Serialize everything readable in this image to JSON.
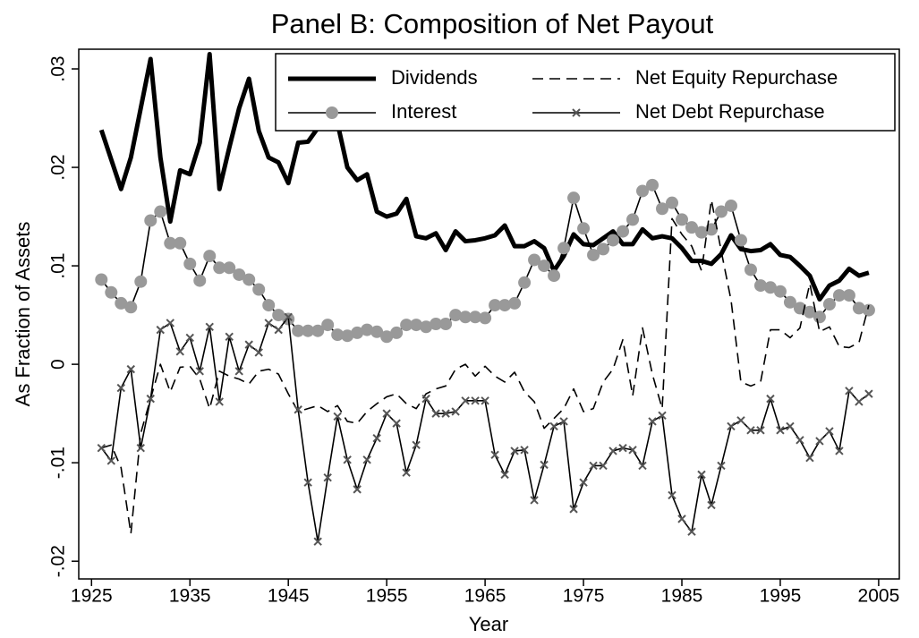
{
  "chart_data": {
    "type": "line",
    "title": "Panel B: Composition of Net Payout",
    "x_label": "Year",
    "y_label": "As Fraction of Assets",
    "xlim": [
      1923.7,
      2007.1
    ],
    "ylim": [
      -0.0218,
      0.032
    ],
    "xticks": [
      1925,
      1935,
      1945,
      1955,
      1965,
      1975,
      1985,
      1995,
      2005
    ],
    "yticks": [
      {
        "value": -0.02,
        "label": "-.02"
      },
      {
        "value": -0.01,
        "label": "-.01"
      },
      0,
      {
        "value": 0.01,
        "label": ".01"
      },
      {
        "value": 0.02,
        "label": ".02"
      },
      {
        "value": 0.03,
        "label": ".03"
      }
    ],
    "grid": false,
    "legend_position": "top-right",
    "x": [
      1926,
      1927,
      1928,
      1929,
      1930,
      1931,
      1932,
      1933,
      1934,
      1935,
      1936,
      1937,
      1938,
      1939,
      1940,
      1941,
      1942,
      1943,
      1944,
      1945,
      1946,
      1947,
      1948,
      1949,
      1950,
      1951,
      1952,
      1953,
      1954,
      1955,
      1956,
      1957,
      1958,
      1959,
      1960,
      1961,
      1962,
      1963,
      1964,
      1965,
      1966,
      1967,
      1968,
      1969,
      1970,
      1971,
      1972,
      1973,
      1974,
      1975,
      1976,
      1977,
      1978,
      1979,
      1980,
      1981,
      1982,
      1983,
      1984,
      1985,
      1986,
      1987,
      1988,
      1989,
      1990,
      1991,
      1992,
      1993,
      1994,
      1995,
      1996,
      1997,
      1998,
      1999,
      2000,
      2001,
      2002,
      2003,
      2004
    ],
    "series": [
      {
        "name": "Dividends",
        "color": "#000000",
        "line_width": 5,
        "dash": false,
        "marker": "none",
        "values": [
          0.0238,
          0.0208,
          0.0178,
          0.021,
          0.026,
          0.031,
          0.021,
          0.0145,
          0.0197,
          0.0193,
          0.0225,
          0.0315,
          0.0178,
          0.022,
          0.026,
          0.029,
          0.0237,
          0.021,
          0.0205,
          0.0184,
          0.0225,
          0.0226,
          0.024,
          0.0265,
          0.0245,
          0.02,
          0.0187,
          0.0193,
          0.0155,
          0.015,
          0.0153,
          0.0168,
          0.013,
          0.0128,
          0.0133,
          0.0116,
          0.0135,
          0.0125,
          0.0126,
          0.0128,
          0.0131,
          0.0141,
          0.012,
          0.012,
          0.0125,
          0.0118,
          0.0095,
          0.011,
          0.0132,
          0.0122,
          0.0121,
          0.0128,
          0.0135,
          0.0122,
          0.0122,
          0.0137,
          0.0128,
          0.013,
          0.0128,
          0.0118,
          0.0105,
          0.0105,
          0.0102,
          0.0112,
          0.0131,
          0.0117,
          0.0115,
          0.0116,
          0.0122,
          0.0111,
          0.0109,
          0.01,
          0.009,
          0.0066,
          0.008,
          0.0085,
          0.0097,
          0.009,
          0.0093
        ]
      },
      {
        "name": "Interest",
        "color": "#000000",
        "marker_color": "#999999",
        "line_width": 1.6,
        "dash": false,
        "marker": "circle",
        "values": [
          0.0086,
          0.0073,
          0.0062,
          0.0058,
          0.0084,
          0.0146,
          0.0155,
          0.0123,
          0.0123,
          0.0102,
          0.0085,
          0.011,
          0.0098,
          0.0098,
          0.0091,
          0.0086,
          0.0076,
          0.006,
          0.005,
          0.0046,
          0.0034,
          0.0034,
          0.0034,
          0.004,
          0.003,
          0.0029,
          0.0032,
          0.0035,
          0.0033,
          0.0028,
          0.0032,
          0.004,
          0.004,
          0.0038,
          0.0041,
          0.0041,
          0.005,
          0.0048,
          0.0048,
          0.0047,
          0.006,
          0.006,
          0.0062,
          0.0083,
          0.0106,
          0.01,
          0.009,
          0.0118,
          0.0169,
          0.0138,
          0.0111,
          0.0117,
          0.0126,
          0.0135,
          0.0147,
          0.0176,
          0.0182,
          0.0158,
          0.0164,
          0.0147,
          0.0139,
          0.0134,
          0.0137,
          0.0155,
          0.0161,
          0.0126,
          0.0096,
          0.008,
          0.0078,
          0.0074,
          0.0063,
          0.0057,
          0.0053,
          0.0048,
          0.0061,
          0.007,
          0.007,
          0.0057,
          0.0055
        ]
      },
      {
        "name": "Net Equity Repurchase",
        "color": "#000000",
        "line_width": 1.6,
        "dash": true,
        "marker": "none",
        "values": [
          -0.0085,
          -0.0082,
          -0.0105,
          -0.0172,
          -0.007,
          -0.0035,
          0.0,
          -0.0028,
          -0.0003,
          -0.0002,
          -0.0015,
          -0.0045,
          -0.0007,
          -0.0012,
          -0.0015,
          -0.002,
          -0.0007,
          -0.0005,
          -0.001,
          -0.003,
          -0.0048,
          -0.0045,
          -0.0042,
          -0.0048,
          -0.0042,
          -0.0058,
          -0.006,
          -0.0048,
          -0.004,
          -0.0033,
          -0.003,
          -0.004,
          -0.0045,
          -0.003,
          -0.0025,
          -0.0022,
          -0.0005,
          0.0,
          -0.0012,
          -0.0002,
          -0.0012,
          -0.0018,
          -0.0008,
          -0.0028,
          -0.0038,
          -0.0065,
          -0.0055,
          -0.0045,
          -0.0025,
          -0.0048,
          -0.0045,
          -0.0018,
          -0.0005,
          0.0025,
          -0.0032,
          0.0037,
          -0.001,
          -0.0045,
          0.0148,
          0.0132,
          0.012,
          0.0095,
          0.0167,
          0.0115,
          0.0065,
          -0.0018,
          -0.0022,
          -0.0018,
          0.0035,
          0.0035,
          0.0027,
          0.0037,
          0.0082,
          0.0033,
          0.0038,
          0.0018,
          0.0017,
          0.0022,
          0.006
        ]
      },
      {
        "name": "Net Debt Repurchase",
        "color": "#000000",
        "marker_color": "#555555",
        "line_width": 1.6,
        "dash": false,
        "marker": "x",
        "values": [
          -0.0085,
          -0.0098,
          -0.0024,
          -0.0005,
          -0.0085,
          -0.0035,
          0.0035,
          0.0042,
          0.0013,
          0.0027,
          -0.0007,
          0.0038,
          -0.0038,
          0.0028,
          -0.0007,
          0.002,
          0.0012,
          0.0042,
          0.0035,
          0.0048,
          -0.0046,
          -0.012,
          -0.018,
          -0.0115,
          -0.0053,
          -0.0097,
          -0.0127,
          -0.0097,
          -0.0075,
          -0.005,
          -0.006,
          -0.011,
          -0.0082,
          -0.0035,
          -0.005,
          -0.005,
          -0.0048,
          -0.0037,
          -0.0037,
          -0.0037,
          -0.0092,
          -0.0112,
          -0.0088,
          -0.0087,
          -0.0138,
          -0.0102,
          -0.0063,
          -0.0058,
          -0.0147,
          -0.012,
          -0.0103,
          -0.0103,
          -0.0088,
          -0.0085,
          -0.0087,
          -0.0103,
          -0.0058,
          -0.0052,
          -0.0133,
          -0.0157,
          -0.017,
          -0.0112,
          -0.0143,
          -0.0103,
          -0.0063,
          -0.0057,
          -0.0067,
          -0.0067,
          -0.0035,
          -0.0067,
          -0.0063,
          -0.0077,
          -0.0095,
          -0.0078,
          -0.0068,
          -0.0088,
          -0.0027,
          -0.0038,
          -0.003
        ]
      }
    ]
  }
}
